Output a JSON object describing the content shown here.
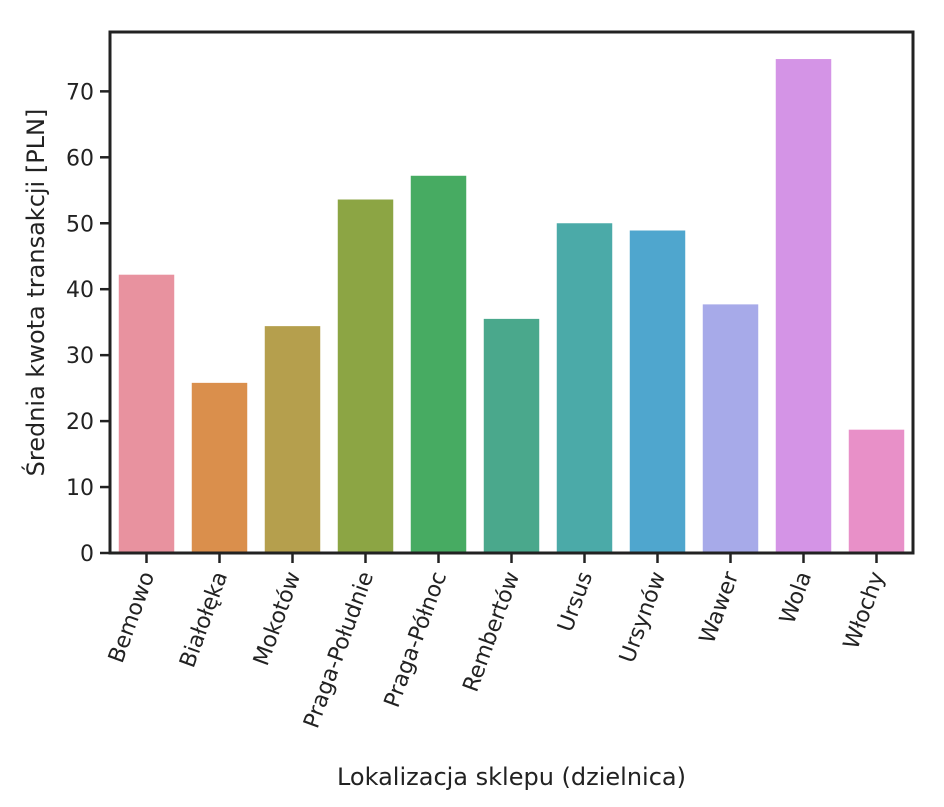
{
  "chart_data": {
    "type": "bar",
    "title": "",
    "xlabel": "Lokalizacja sklepu (dzielnica)",
    "ylabel": "Średnia kwota transakcji [PLN]",
    "categories": [
      "Bemowo",
      "Białołęka",
      "Mokotów",
      "Praga-Południe",
      "Praga-Północ",
      "Rembertów",
      "Ursus",
      "Ursynów",
      "Wawer",
      "Wola",
      "Włochy"
    ],
    "values": [
      42.2,
      25.8,
      34.4,
      53.6,
      57.2,
      35.5,
      50.0,
      48.9,
      37.7,
      74.9,
      18.7
    ],
    "colors": [
      "#E8929F",
      "#DA8F4C",
      "#B59F4D",
      "#8CA544",
      "#47AB62",
      "#4AA88C",
      "#4BAAA8",
      "#4FA6CE",
      "#A7AAE9",
      "#D494E6",
      "#E890C8"
    ],
    "ylim": [
      0,
      79
    ],
    "yticks": [
      0,
      10,
      20,
      30,
      40,
      50,
      60,
      70
    ],
    "grid": false,
    "legend": "none"
  }
}
